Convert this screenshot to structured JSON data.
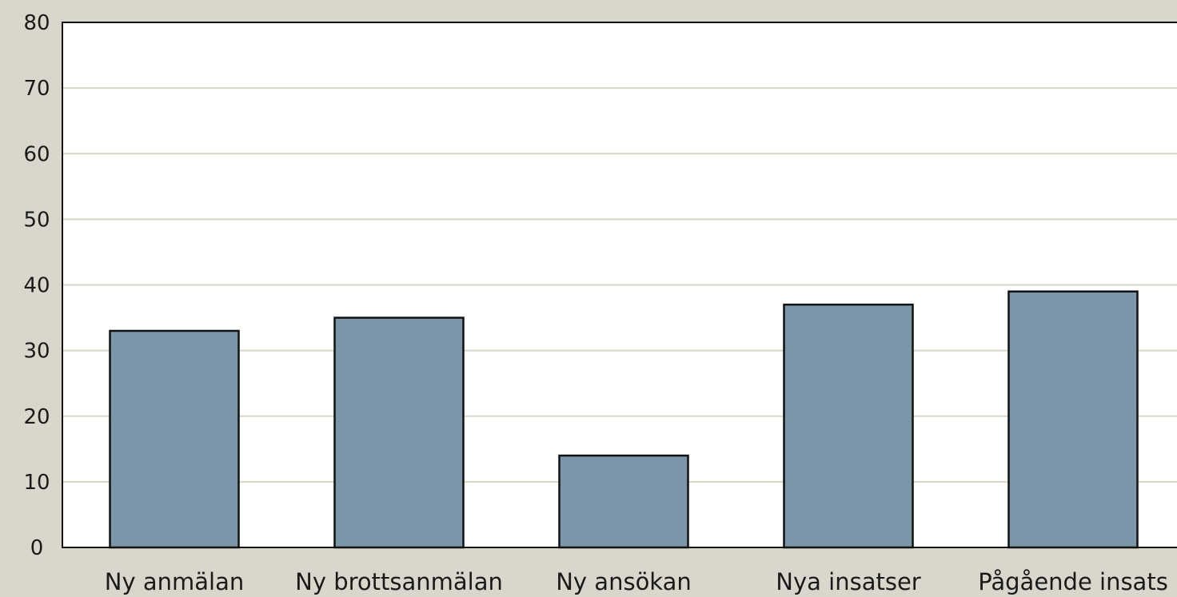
{
  "chart_data": {
    "type": "bar",
    "title": "",
    "xlabel": "",
    "ylabel": "",
    "categories": [
      "Ny anmälan",
      "Ny brottsanmälan",
      "Ny ansökan",
      "Nya insatser",
      "Pågående insats"
    ],
    "values": [
      33,
      35,
      14,
      37,
      39
    ],
    "ylim": [
      0,
      80
    ],
    "yticks": [
      "0",
      "10",
      "20",
      "30",
      "40",
      "50",
      "60",
      "70",
      "80"
    ],
    "grid": true,
    "legend": "none",
    "colors": {
      "bar": "#7a96a8",
      "bar_stroke": "#111111",
      "grid": "#d8d5c4",
      "plot_bg": "#ffffff",
      "page_bg": "#d9d6cb"
    }
  }
}
